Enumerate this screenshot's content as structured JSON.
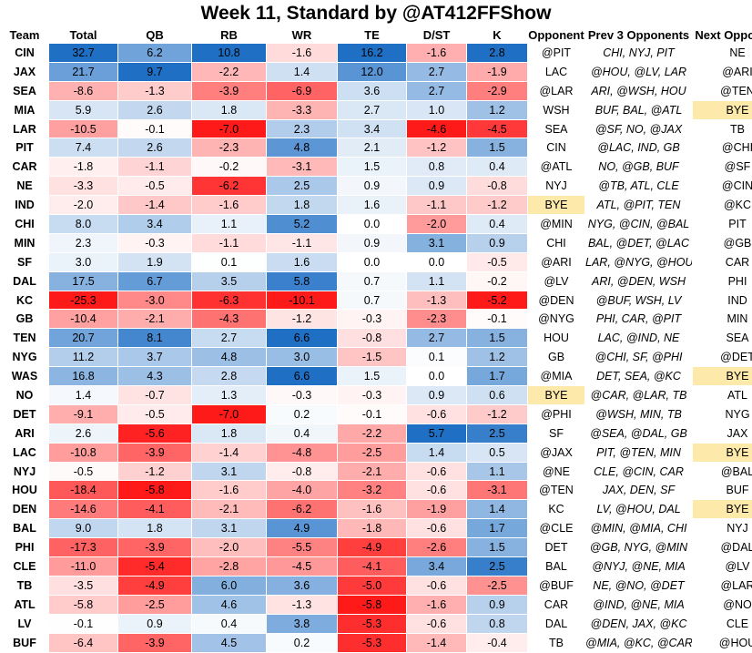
{
  "title": "Week 11, Standard by @AT412FFShow",
  "colors": {
    "max_blue": "#1f6fc5",
    "max_red": "#ff1a1a",
    "bye_fill": "#fde9a9"
  },
  "headers": [
    "Team",
    "Total",
    "QB",
    "RB",
    "WR",
    "TE",
    "D/ST",
    "K",
    "Opponent",
    "Prev 3 Opponents",
    "Next Opponent"
  ],
  "chart_data": {
    "type": "table",
    "title": "Week 11, Standard by @AT412FFShow",
    "columns": [
      "Team",
      "Total",
      "QB",
      "RB",
      "WR",
      "TE",
      "D/ST",
      "K",
      "Opponent",
      "Prev 3 Opponents",
      "Next Opponent"
    ],
    "rows": [
      {
        "team": "CIN",
        "values": [
          "32.7",
          "6.2",
          "10.8",
          "-1.6",
          "16.2",
          "-1.6",
          "2.8"
        ],
        "opponent": "@PIT",
        "prev3": "CHI, NYJ, PIT",
        "next": "NE"
      },
      {
        "team": "JAX",
        "values": [
          "21.7",
          "9.7",
          "-2.2",
          "1.4",
          "12.0",
          "2.7",
          "-1.9"
        ],
        "opponent": "LAC",
        "prev3": "@HOU, @LV, LAR",
        "next": "@ARI"
      },
      {
        "team": "SEA",
        "values": [
          "-8.6",
          "-1.3",
          "-3.9",
          "-6.9",
          "3.6",
          "2.7",
          "-2.9"
        ],
        "opponent": "@LAR",
        "prev3": "ARI, @WSH, HOU",
        "next": "@TEN"
      },
      {
        "team": "MIA",
        "values": [
          "5.9",
          "2.6",
          "1.8",
          "-3.3",
          "2.7",
          "1.0",
          "1.2"
        ],
        "opponent": "WSH",
        "prev3": "BUF, BAL, @ATL",
        "next": "BYE"
      },
      {
        "team": "LAR",
        "values": [
          "-10.5",
          "-0.1",
          "-7.0",
          "2.3",
          "3.4",
          "-4.6",
          "-4.5"
        ],
        "opponent": "SEA",
        "prev3": "@SF, NO, @JAX",
        "next": "TB"
      },
      {
        "team": "PIT",
        "values": [
          "7.4",
          "2.6",
          "-2.3",
          "4.8",
          "2.1",
          "-1.2",
          "1.5"
        ],
        "opponent": "CIN",
        "prev3": "@LAC, IND, GB",
        "next": "@CHI"
      },
      {
        "team": "CAR",
        "values": [
          "-1.8",
          "-1.1",
          "-0.2",
          "-3.1",
          "1.5",
          "0.8",
          "0.4"
        ],
        "opponent": "@ATL",
        "prev3": "NO, @GB, BUF",
        "next": "@SF"
      },
      {
        "team": "NE",
        "values": [
          "-3.3",
          "-0.5",
          "-6.2",
          "2.5",
          "0.9",
          "0.9",
          "-0.8"
        ],
        "opponent": "NYJ",
        "prev3": "@TB, ATL, CLE",
        "next": "@CIN"
      },
      {
        "team": "IND",
        "values": [
          "-2.0",
          "-1.4",
          "-1.6",
          "1.8",
          "1.6",
          "-1.1",
          "-1.2"
        ],
        "opponent": "BYE",
        "prev3": "ATL, @PIT, TEN",
        "next": "@KC"
      },
      {
        "team": "CHI",
        "values": [
          "8.0",
          "3.4",
          "1.1",
          "5.2",
          "0.0",
          "-2.0",
          "0.4"
        ],
        "opponent": "@MIN",
        "prev3": "NYG, @CIN, @BAL",
        "next": "PIT"
      },
      {
        "team": "MIN",
        "values": [
          "2.3",
          "-0.3",
          "-1.1",
          "-1.1",
          "0.9",
          "3.1",
          "0.9"
        ],
        "opponent": "CHI",
        "prev3": "BAL, @DET, @LAC",
        "next": "@GB"
      },
      {
        "team": "SF",
        "values": [
          "3.0",
          "1.9",
          "0.1",
          "1.6",
          "0.0",
          "0.0",
          "-0.5"
        ],
        "opponent": "@ARI",
        "prev3": "LAR, @NYG, @HOU",
        "next": "CAR"
      },
      {
        "team": "DAL",
        "values": [
          "17.5",
          "6.7",
          "3.5",
          "5.8",
          "0.7",
          "1.1",
          "-0.2"
        ],
        "opponent": "@LV",
        "prev3": "ARI, @DEN, WSH",
        "next": "PHI"
      },
      {
        "team": "KC",
        "values": [
          "-25.3",
          "-3.0",
          "-6.3",
          "-10.1",
          "0.7",
          "-1.3",
          "-5.2"
        ],
        "opponent": "@DEN",
        "prev3": "@BUF, WSH, LV",
        "next": "IND"
      },
      {
        "team": "GB",
        "values": [
          "-10.4",
          "-2.1",
          "-4.3",
          "-1.2",
          "-0.3",
          "-2.3",
          "-0.1"
        ],
        "opponent": "@NYG",
        "prev3": "PHI, CAR, @PIT",
        "next": "MIN"
      },
      {
        "team": "TEN",
        "values": [
          "20.7",
          "8.1",
          "2.7",
          "6.6",
          "-0.8",
          "2.7",
          "1.5"
        ],
        "opponent": "HOU",
        "prev3": "LAC, @IND, NE",
        "next": "SEA"
      },
      {
        "team": "NYG",
        "values": [
          "11.2",
          "3.7",
          "4.8",
          "3.0",
          "-1.5",
          "0.1",
          "1.2"
        ],
        "opponent": "GB",
        "prev3": "@CHI, SF, @PHI",
        "next": "@DET"
      },
      {
        "team": "WAS",
        "values": [
          "16.8",
          "4.3",
          "2.8",
          "6.6",
          "1.5",
          "0.0",
          "1.7"
        ],
        "opponent": "@MIA",
        "prev3": "DET, SEA, @KC",
        "next": "BYE"
      },
      {
        "team": "NO",
        "values": [
          "1.4",
          "-0.7",
          "1.3",
          "-0.3",
          "-0.3",
          "0.9",
          "0.6"
        ],
        "opponent": "BYE",
        "prev3": "@CAR, @LAR, TB",
        "next": "ATL"
      },
      {
        "team": "DET",
        "values": [
          "-9.1",
          "-0.5",
          "-7.0",
          "0.2",
          "-0.1",
          "-0.6",
          "-1.2"
        ],
        "opponent": "@PHI",
        "prev3": "@WSH, MIN, TB",
        "next": "NYG"
      },
      {
        "team": "ARI",
        "values": [
          "2.6",
          "-5.6",
          "1.8",
          "0.4",
          "-2.2",
          "5.7",
          "2.5"
        ],
        "opponent": "SF",
        "prev3": "@SEA, @DAL, GB",
        "next": "JAX"
      },
      {
        "team": "LAC",
        "values": [
          "-10.8",
          "-3.9",
          "-1.4",
          "-4.8",
          "-2.5",
          "1.4",
          "0.5"
        ],
        "opponent": "@JAX",
        "prev3": "PIT, @TEN, MIN",
        "next": "BYE"
      },
      {
        "team": "NYJ",
        "values": [
          "-0.5",
          "-1.2",
          "3.1",
          "-0.8",
          "-2.1",
          "-0.6",
          "1.1"
        ],
        "opponent": "@NE",
        "prev3": "CLE, @CIN, CAR",
        "next": "@BAL"
      },
      {
        "team": "HOU",
        "values": [
          "-18.4",
          "-5.8",
          "-1.6",
          "-4.0",
          "-3.2",
          "-0.6",
          "-3.1"
        ],
        "opponent": "@TEN",
        "prev3": "JAX, DEN, SF",
        "next": "BUF"
      },
      {
        "team": "DEN",
        "values": [
          "-14.6",
          "-4.1",
          "-2.1",
          "-6.2",
          "-1.6",
          "-1.9",
          "1.4"
        ],
        "opponent": "KC",
        "prev3": "LV, @HOU, DAL",
        "next": "BYE"
      },
      {
        "team": "BAL",
        "values": [
          "9.0",
          "1.8",
          "3.1",
          "4.9",
          "-1.8",
          "-0.6",
          "1.7"
        ],
        "opponent": "@CLE",
        "prev3": "@MIN, @MIA, CHI",
        "next": "NYJ"
      },
      {
        "team": "PHI",
        "values": [
          "-17.3",
          "-3.9",
          "-2.0",
          "-5.5",
          "-4.9",
          "-2.6",
          "1.5"
        ],
        "opponent": "DET",
        "prev3": "@GB, NYG, @MIN",
        "next": "@DAL"
      },
      {
        "team": "CLE",
        "values": [
          "-11.0",
          "-5.4",
          "-2.8",
          "-4.5",
          "-4.1",
          "3.4",
          "2.5"
        ],
        "opponent": "BAL",
        "prev3": "@NYJ, @NE, MIA",
        "next": "@LV"
      },
      {
        "team": "TB",
        "values": [
          "-3.5",
          "-4.9",
          "6.0",
          "3.6",
          "-5.0",
          "-0.6",
          "-2.5"
        ],
        "opponent": "@BUF",
        "prev3": "NE, @NO, @DET",
        "next": "@LAR"
      },
      {
        "team": "ATL",
        "values": [
          "-5.8",
          "-2.5",
          "4.6",
          "-1.3",
          "-5.8",
          "-1.6",
          "0.9"
        ],
        "opponent": "CAR",
        "prev3": "@IND, @NE, MIA",
        "next": "@NO"
      },
      {
        "team": "LV",
        "values": [
          "-0.1",
          "0.9",
          "0.4",
          "3.8",
          "-5.3",
          "-0.6",
          "0.8"
        ],
        "opponent": "DAL",
        "prev3": "@DEN, JAX, @KC",
        "next": "CLE"
      },
      {
        "team": "BUF",
        "values": [
          "-6.4",
          "-3.9",
          "4.5",
          "0.2",
          "-5.3",
          "-1.4",
          "-0.4"
        ],
        "opponent": "TB",
        "prev3": "@MIA, @KC, @CAR",
        "next": "@HOU"
      }
    ]
  }
}
